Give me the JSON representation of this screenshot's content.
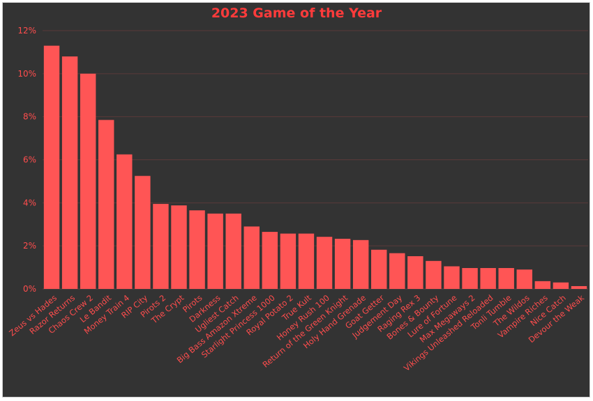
{
  "chart_data": {
    "type": "bar",
    "title": "2023 Game of the Year",
    "xlabel": "",
    "ylabel": "",
    "ylim": [
      0,
      12
    ],
    "yticks": [
      "0%",
      "2%",
      "4%",
      "6%",
      "8%",
      "10%",
      "12%"
    ],
    "grid": true,
    "bar_color": "#ff5555",
    "text_color": "#ff4d4d",
    "categories": [
      "Zeus vs Hades",
      "Razor Returns",
      "Chaos Crew 2",
      "Le Bandit",
      "Money Train 4",
      "RIP City",
      "Pirots 2",
      "The Crypt",
      "Pirots",
      "Darkness",
      "Ugliest Catch",
      "Big Bass Amazon Xtreme",
      "Starlight Princess 1000",
      "Royal Potato 2",
      "True Kult",
      "Honey Rush 100",
      "Return of the Green Knight",
      "Holy Hand Grenade",
      "Goat Getter",
      "Judgement Day",
      "Raging Rex 3",
      "Bones & Bounty",
      "Lure of Fortune",
      "Max Megaways 2",
      "Vikings Unleashed Reloaded",
      "Tonli Tumble",
      "The Wildos",
      "Vampire Riches",
      "Nice Catch",
      "Devour the Weak"
    ],
    "values": [
      11.3,
      10.8,
      10.0,
      7.85,
      6.25,
      5.25,
      3.95,
      3.88,
      3.65,
      3.5,
      3.5,
      2.9,
      2.65,
      2.57,
      2.57,
      2.42,
      2.33,
      2.27,
      1.82,
      1.66,
      1.52,
      1.3,
      1.05,
      0.97,
      0.97,
      0.97,
      0.9,
      0.36,
      0.3,
      0.13
    ]
  }
}
